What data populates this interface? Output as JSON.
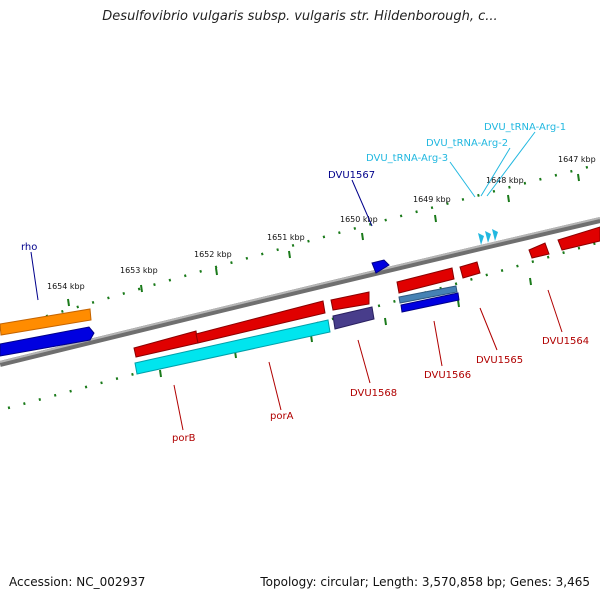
{
  "title": "Desulfovibrio vulgaris subsp. vulgaris str. Hildenborough, c...",
  "footer": {
    "accession": "Accession: NC_002937",
    "summary": "Topology: circular; Length: 3,570,858 bp; Genes: 3,465"
  },
  "scale_labels": [
    "1654 kbp",
    "1653 kbp",
    "1652 kbp",
    "1651 kbp",
    "1650 kbp",
    "1649 kbp",
    "1648 kbp",
    "1647 kbp"
  ],
  "gene_labels": {
    "rho": "rho",
    "dvu1567": "DVU1567",
    "trna3": "DVU_tRNA-Arg-3",
    "trna2": "DVU_tRNA-Arg-2",
    "trna1": "DVU_tRNA-Arg-1",
    "porb": "porB",
    "pora": "porA",
    "dvu1568": "DVU1568",
    "dvu1566": "DVU1566",
    "dvu1565": "DVU1565",
    "dvu1564": "DVU1564"
  },
  "colors": {
    "backbone": "#7a7a7a",
    "tick": "#1a7a1a",
    "label_dark_blue": "#00008b",
    "label_red": "#b00000",
    "label_cyan": "#22b8e0",
    "gene_red": "#e00000",
    "gene_blue": "#0000e0",
    "gene_orange": "#ff8c00",
    "gene_cyan": "#00e5ee",
    "gene_slate": "#483d8b",
    "gene_steel": "#4682b4"
  }
}
